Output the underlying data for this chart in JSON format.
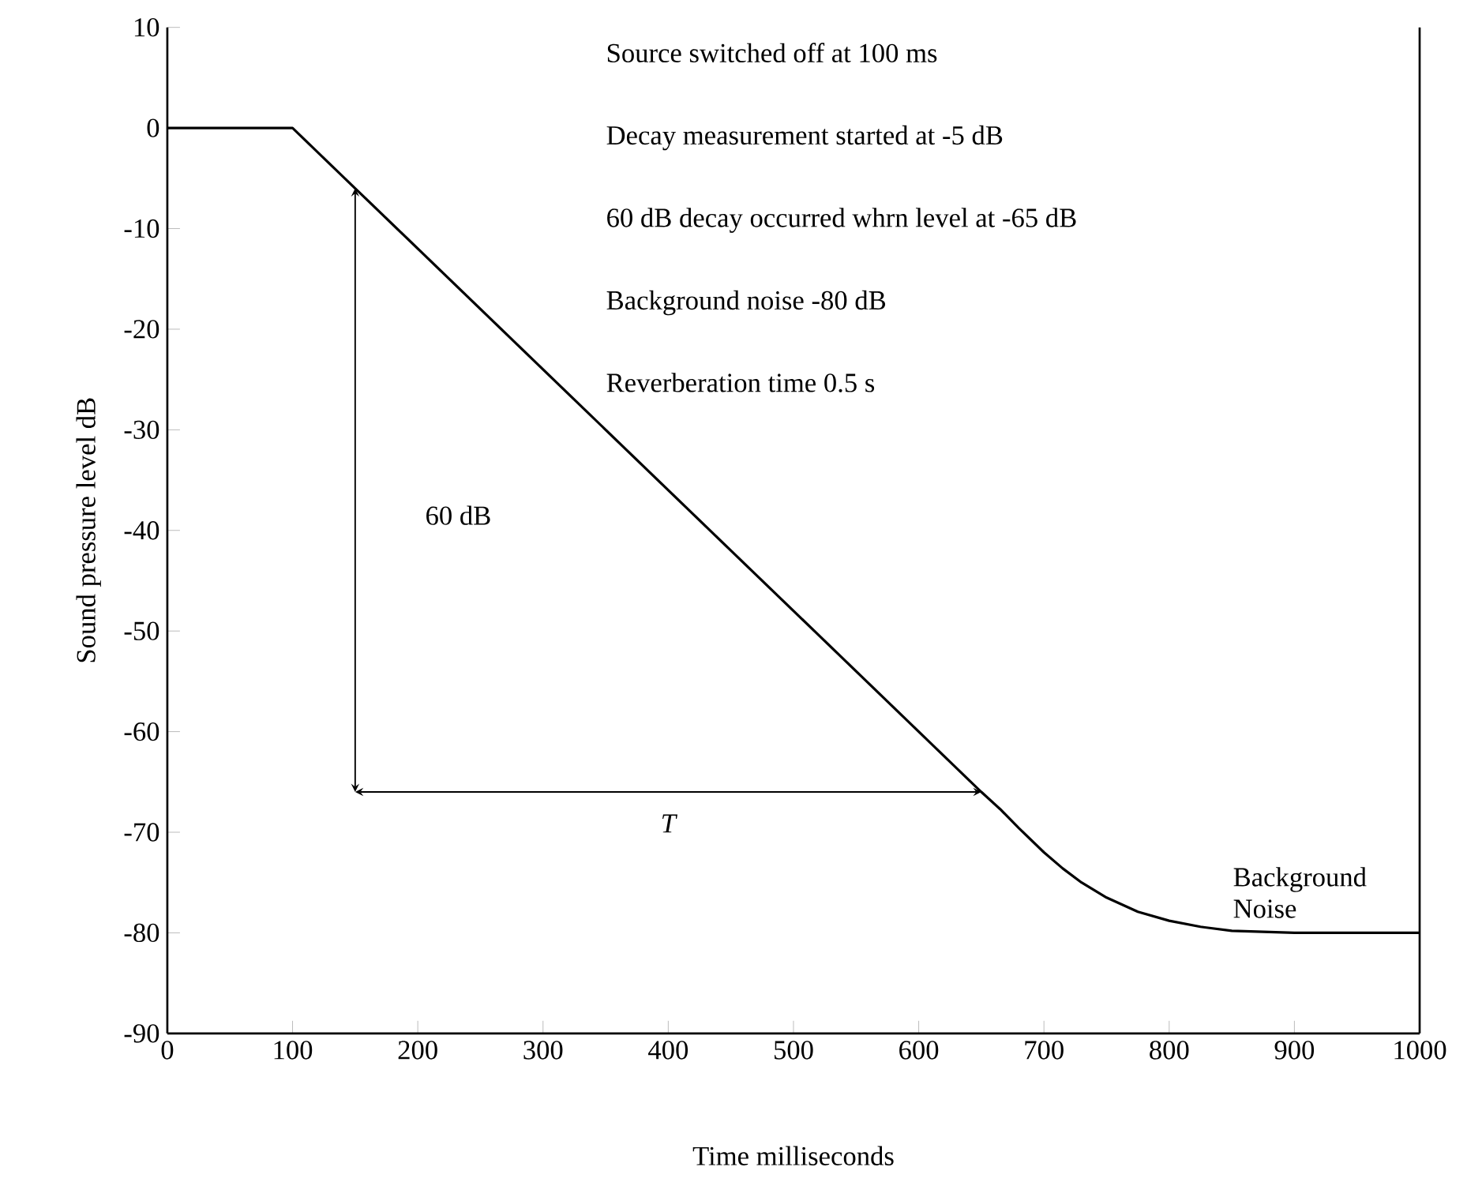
{
  "chart_data": {
    "type": "line",
    "xlabel": "Time milliseconds",
    "ylabel": "Sound pressure level dB",
    "series": [
      {
        "color": "#000000",
        "x": [
          0,
          100,
          150,
          650,
          665,
          680,
          700,
          715,
          730,
          750,
          775,
          800,
          825,
          850,
          875,
          900,
          1000
        ],
        "values": [
          0,
          0,
          -6,
          -66,
          -67.7,
          -69.6,
          -72,
          -73.6,
          -75,
          -76.5,
          -77.9,
          -78.8,
          -79.4,
          -79.8,
          -79.9,
          -80,
          -80
        ]
      }
    ],
    "xlim": [
      0,
      1000
    ],
    "ylim": [
      -90,
      10
    ],
    "xticks": [
      0,
      100,
      200,
      300,
      400,
      500,
      600,
      700,
      800,
      900,
      1000
    ],
    "yticks": [
      -90,
      -80,
      -70,
      -60,
      -50,
      -40,
      -30,
      -20,
      -10,
      0,
      10
    ],
    "marker": "none",
    "line_style": "solid",
    "annotations": [
      "Source switched off at 100 ms",
      "Decay measurement started at -5 dB",
      "60 dB decay occurred whrn level at -65 dB",
      "Background noise -80 dB",
      "Reverberation time 0.5 s",
      "60 dB",
      "T",
      "Background Noise"
    ]
  }
}
